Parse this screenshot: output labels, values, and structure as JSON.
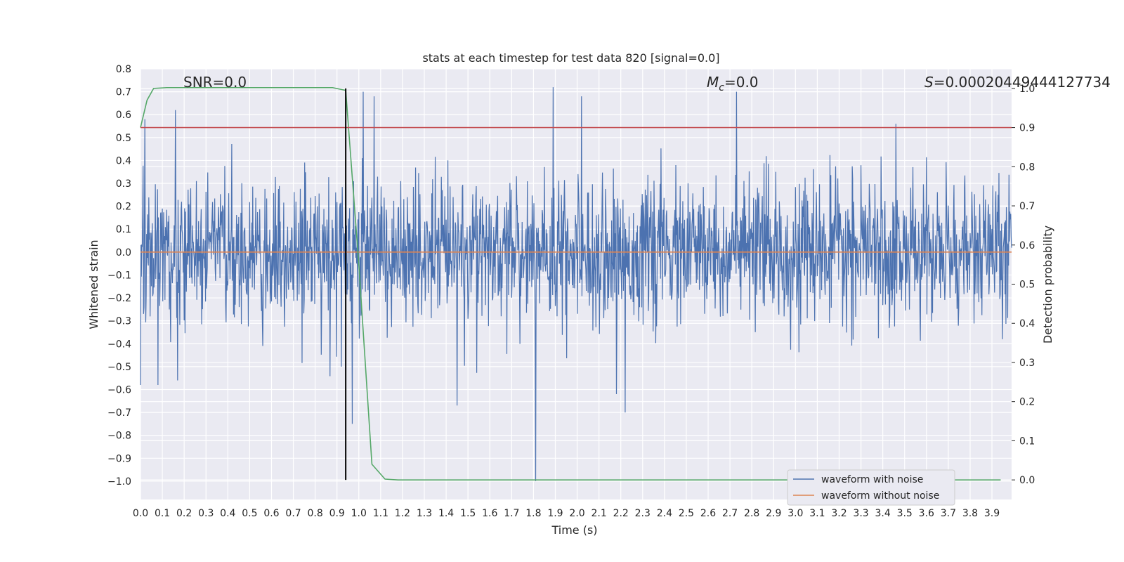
{
  "chart_data": {
    "type": "line",
    "title": "stats at each timestep for test data 820 [signal=0.0]",
    "xlabel": "Time (s)",
    "ylabel": "Whitened strain",
    "y2label": "Detection probability",
    "xlim": [
      0.0,
      3.99
    ],
    "ylim": [
      -1.08,
      0.8
    ],
    "y2lim": [
      -0.05,
      1.05
    ],
    "x_ticks": [
      0.0,
      0.1,
      0.2,
      0.3,
      0.4,
      0.5,
      0.6,
      0.7,
      0.8,
      0.9,
      1.0,
      1.1,
      1.2,
      1.3,
      1.4,
      1.5,
      1.6,
      1.7,
      1.8,
      1.9,
      2.0,
      2.1,
      2.2,
      2.3,
      2.4,
      2.5,
      2.6,
      2.7,
      2.8,
      2.9,
      3.0,
      3.1,
      3.2,
      3.3,
      3.4,
      3.5,
      3.6,
      3.7,
      3.8,
      3.9
    ],
    "y_ticks": [
      0.8,
      0.7,
      0.6,
      0.5,
      0.4,
      0.3,
      0.2,
      0.1,
      0.0,
      -0.1,
      -0.2,
      -0.3,
      -0.4,
      -0.5,
      -0.6,
      -0.7,
      -0.8,
      -0.9,
      -1.0
    ],
    "y_tick_labels": [
      "0.8",
      "0.7",
      "0.6",
      "0.5",
      "0.4",
      "0.3",
      "0.2",
      "0.1",
      "0.0",
      "−0.1",
      "−0.2",
      "−0.3",
      "−0.4",
      "−0.5",
      "−0.6",
      "−0.7",
      "−0.8",
      "−0.9",
      "−1.0"
    ],
    "y2_ticks": [
      1.0,
      0.9,
      0.8,
      0.7,
      0.6,
      0.5,
      0.4,
      0.3,
      0.2,
      0.1,
      0.0
    ],
    "grid": true,
    "legend_position": "bottom-right",
    "annotations": {
      "snr": "SNR=0.0",
      "mc_symbol": "M",
      "mc_sub": "c",
      "mc_value": "=0.0",
      "s_symbol": "S",
      "s_value": "=0.00020449444127734"
    },
    "series": [
      {
        "name": "waveform with noise",
        "color": "#4c72b0",
        "axis": "left",
        "noise_amplitude": 0.3,
        "noise_clip": [
          -1.0,
          0.72
        ],
        "sample_step": 0.002,
        "peaks": [
          {
            "x": 0.0,
            "y": -0.58
          },
          {
            "x": 0.02,
            "y": 0.58
          },
          {
            "x": 0.08,
            "y": -0.58
          },
          {
            "x": 0.16,
            "y": 0.62
          },
          {
            "x": 0.17,
            "y": -0.56
          },
          {
            "x": 0.92,
            "y": -0.5
          },
          {
            "x": 0.94,
            "y": 0.46
          },
          {
            "x": 0.97,
            "y": -0.75
          },
          {
            "x": 1.02,
            "y": 0.7
          },
          {
            "x": 1.07,
            "y": 0.68
          },
          {
            "x": 1.45,
            "y": -0.67
          },
          {
            "x": 1.81,
            "y": -1.0
          },
          {
            "x": 1.89,
            "y": 0.72
          },
          {
            "x": 2.02,
            "y": 0.68
          },
          {
            "x": 2.18,
            "y": -0.62
          },
          {
            "x": 2.22,
            "y": -0.7
          },
          {
            "x": 2.73,
            "y": 0.7
          },
          {
            "x": 3.46,
            "y": 0.56
          }
        ]
      },
      {
        "name": "waveform without noise",
        "color": "#dd8452",
        "axis": "left",
        "x": [
          0.0,
          3.99
        ],
        "y": [
          0.0,
          0.0
        ]
      },
      {
        "name": "detection probability",
        "color": "#55a868",
        "axis": "right",
        "x": [
          0.0,
          0.03,
          0.06,
          0.12,
          0.88,
          0.94,
          1.0,
          1.06,
          1.12,
          1.18,
          3.94
        ],
        "y": [
          0.9,
          0.97,
          1.0,
          1.002,
          1.002,
          0.995,
          0.55,
          0.04,
          0.002,
          0.0,
          0.0
        ]
      },
      {
        "name": "threshold",
        "color": "#c44e52",
        "axis": "right",
        "x": [
          0.0,
          3.99
        ],
        "y": [
          0.9,
          0.9
        ]
      },
      {
        "name": "peak time",
        "color": "#000000",
        "axis": "right",
        "x": [
          0.94,
          0.94
        ],
        "y": [
          0.0,
          1.0
        ]
      }
    ],
    "legend_entries": [
      "waveform with noise",
      "waveform without noise"
    ]
  }
}
